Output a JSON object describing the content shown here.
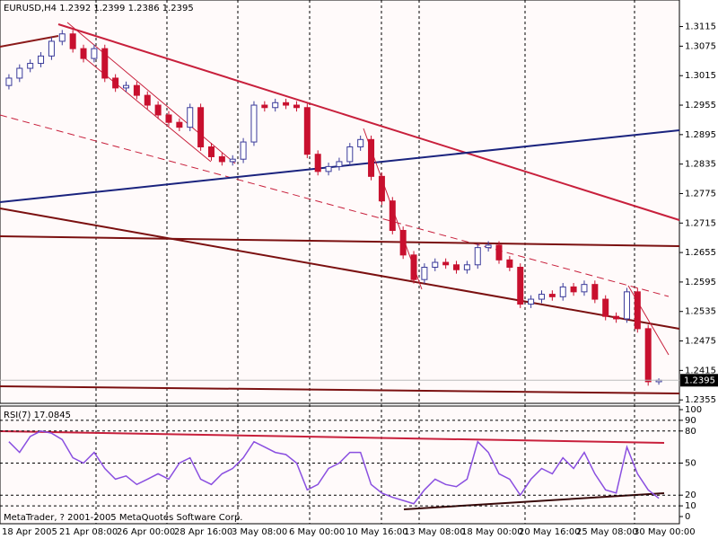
{
  "chart_data": {
    "type": "candlestick",
    "symbol": "EURUSD,H4",
    "open": [
      1.2995,
      1.301,
      1.303,
      1.304,
      1.3055,
      1.3085,
      1.31,
      1.307,
      1.305,
      1.307,
      1.301,
      1.299,
      1.2995,
      1.2975,
      1.2955,
      1.2935,
      1.292,
      1.291,
      1.295,
      1.287,
      1.285,
      1.284,
      1.2845,
      1.288,
      1.2955,
      1.295,
      1.296,
      1.2955,
      1.295,
      1.2855,
      1.282,
      1.283,
      1.284,
      1.287,
      1.2885,
      1.281,
      1.276,
      1.27,
      1.265,
      1.26,
      1.2625,
      1.2635,
      1.263,
      1.262,
      1.263,
      1.2665,
      1.267,
      1.264,
      1.2625,
      1.255,
      1.256,
      1.257,
      1.2565,
      1.2585,
      1.2575,
      1.259,
      1.256,
      1.2525,
      1.252,
      1.2575,
      1.25,
      1.2392
    ],
    "high": [
      1.3018,
      1.3038,
      1.3048,
      1.3063,
      1.3093,
      1.3108,
      1.3108,
      1.3078,
      1.3078,
      1.3078,
      1.3018,
      1.3003,
      1.3003,
      1.2983,
      1.2963,
      1.2943,
      1.2928,
      1.2958,
      1.2958,
      1.2878,
      1.2858,
      1.2853,
      1.2888,
      1.2963,
      1.2963,
      1.2968,
      1.2968,
      1.2963,
      1.2958,
      1.2863,
      1.2838,
      1.2848,
      1.2878,
      1.2893,
      1.2893,
      1.2818,
      1.2768,
      1.2708,
      1.2658,
      1.2633,
      1.2643,
      1.2643,
      1.2638,
      1.2638,
      1.2673,
      1.2678,
      1.2678,
      1.2648,
      1.2633,
      1.2568,
      1.2578,
      1.2578,
      1.2593,
      1.2593,
      1.2598,
      1.2598,
      1.2568,
      1.2533,
      1.2583,
      1.2583,
      1.2508,
      1.2399
    ],
    "low": [
      1.2987,
      1.3002,
      1.3022,
      1.3032,
      1.3047,
      1.3077,
      1.3062,
      1.3042,
      1.3042,
      1.3002,
      1.2982,
      1.2982,
      1.2967,
      1.2947,
      1.2927,
      1.2912,
      1.2902,
      1.2902,
      1.2862,
      1.2842,
      1.2832,
      1.2832,
      1.2837,
      1.2872,
      1.2942,
      1.2942,
      1.2947,
      1.2942,
      1.2847,
      1.2812,
      1.2812,
      1.2822,
      1.2832,
      1.2862,
      1.2802,
      1.2752,
      1.2692,
      1.2642,
      1.2592,
      1.2592,
      1.2617,
      1.2622,
      1.2612,
      1.2612,
      1.2622,
      1.2657,
      1.2632,
      1.2617,
      1.2542,
      1.2542,
      1.2552,
      1.2557,
      1.2557,
      1.2567,
      1.2567,
      1.2552,
      1.2517,
      1.2512,
      1.2512,
      1.2492,
      1.2384,
      1.2386
    ],
    "close": [
      1.301,
      1.303,
      1.304,
      1.3055,
      1.3085,
      1.31,
      1.307,
      1.305,
      1.307,
      1.301,
      1.299,
      1.2995,
      1.2975,
      1.2955,
      1.2935,
      1.292,
      1.291,
      1.295,
      1.287,
      1.285,
      1.284,
      1.2845,
      1.288,
      1.2955,
      1.295,
      1.296,
      1.2955,
      1.295,
      1.2855,
      1.282,
      1.283,
      1.284,
      1.287,
      1.2885,
      1.281,
      1.276,
      1.27,
      1.265,
      1.26,
      1.2625,
      1.2635,
      1.263,
      1.262,
      1.263,
      1.2665,
      1.267,
      1.264,
      1.2625,
      1.255,
      1.256,
      1.257,
      1.2565,
      1.2585,
      1.2575,
      1.259,
      1.256,
      1.2525,
      1.252,
      1.2575,
      1.25,
      1.2392,
      1.2395
    ],
    "up_color": "#3a3a9a",
    "down_color": "#c8102e",
    "ylim": [
      1.2348,
      1.3169
    ],
    "yticks": [
      1.3115,
      1.3075,
      1.3015,
      1.2955,
      1.2895,
      1.2835,
      1.2775,
      1.2715,
      1.2655,
      1.2595,
      1.2535,
      1.2475,
      1.2415,
      1.2355
    ],
    "x_labels": [
      "18 Apr 2005",
      "21 Apr 08:00",
      "26 Apr 00:00",
      "28 Apr 16:00",
      "3 May 08:00",
      "6 May 00:00",
      "10 May 16:00",
      "13 May 08:00",
      "18 May 00:00",
      "20 May 16:00",
      "25 May 08:00",
      "30 May 00:00"
    ],
    "footer": "MetaTrader, ? 2001-2005 MetaQuotes Software Corp.",
    "indicator": {
      "type": "line",
      "name": "RSI(7)",
      "color": "#8a4fe0",
      "values": [
        70,
        60,
        75,
        80,
        78,
        72,
        55,
        50,
        60,
        45,
        35,
        38,
        30,
        35,
        40,
        35,
        50,
        55,
        35,
        30,
        40,
        45,
        55,
        70,
        65,
        60,
        58,
        50,
        25,
        30,
        45,
        50,
        60,
        60,
        30,
        22,
        18,
        15,
        12,
        25,
        35,
        30,
        28,
        35,
        70,
        60,
        40,
        35,
        20,
        35,
        45,
        40,
        55,
        45,
        60,
        40,
        25,
        22,
        65,
        40,
        25,
        17.0845
      ],
      "ylim": [
        0,
        100
      ],
      "yticks": [
        100,
        90,
        80,
        50,
        20,
        10,
        0
      ],
      "grid": true
    }
  }
}
